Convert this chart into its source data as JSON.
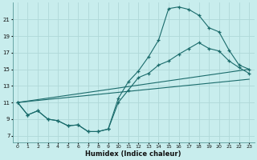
{
  "xlabel": "Humidex (Indice chaleur)",
  "background_color": "#c8eded",
  "grid_color": "#b0d8d8",
  "line_color": "#1a6b6b",
  "x_ticks": [
    0,
    1,
    2,
    3,
    4,
    5,
    6,
    7,
    8,
    9,
    10,
    11,
    12,
    13,
    14,
    15,
    16,
    17,
    18,
    19,
    20,
    21,
    22,
    23
  ],
  "y_ticks": [
    7,
    9,
    11,
    13,
    15,
    17,
    19,
    21
  ],
  "ylim": [
    6.2,
    23.0
  ],
  "xlim": [
    -0.5,
    23.5
  ],
  "line1_y": [
    11.0,
    9.5,
    10.0,
    9.0,
    8.8,
    8.2,
    8.3,
    7.5,
    7.5,
    7.8,
    11.5,
    13.5,
    14.8,
    16.5,
    18.5,
    22.3,
    22.5,
    22.2,
    21.5,
    20.0,
    19.5,
    17.3,
    15.5,
    15.0
  ],
  "line2_y": [
    11.0,
    9.5,
    10.0,
    9.0,
    8.8,
    8.2,
    8.3,
    7.5,
    7.5,
    7.8,
    11.0,
    12.5,
    14.0,
    14.5,
    15.5,
    16.0,
    16.8,
    17.5,
    18.2,
    17.5,
    17.2,
    16.0,
    15.2,
    14.5
  ],
  "trend1_y": [
    11.0,
    15.0
  ],
  "trend2_y": [
    11.0,
    13.8
  ]
}
